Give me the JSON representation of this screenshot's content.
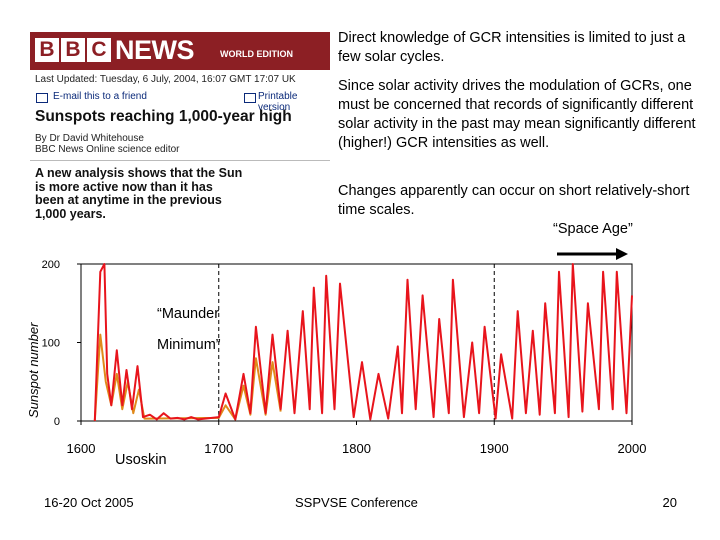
{
  "bbc": {
    "letters": [
      "B",
      "B",
      "C"
    ],
    "news": "NEWS",
    "edition": "WORLD EDITION",
    "last_updated": "Last Updated: Tuesday, 6 July, 2004, 16:07 GMT 17:07 UK",
    "email_link": "E-mail this to a friend",
    "printable_link": "Printable version",
    "headline": "Sunspots reaching 1,000-year high",
    "byline": "By Dr David Whitehouse",
    "byline_role": "BBC News Online science editor",
    "summary": "A new analysis shows that the Sun is more active now than it has been at anytime in the previous 1,000 years."
  },
  "slide": {
    "p1": "Direct knowledge of GCR intensities is limited to just a few solar cycles.",
    "p2": "Since solar activity drives the modulation of GCRs, one must be concerned that records of significantly different solar activity in the past may mean significantly different (higher!) GCR intensities as well.",
    "p3": "Changes apparently can occur on short relatively-short time scales.",
    "space_age": "“Space Age”",
    "footer_date": "16-20 Oct 2005",
    "footer_conf": "SSPVSE Conference",
    "page_number": "20"
  },
  "colors": {
    "bbc_red": "#8c1f24",
    "series_red": "#e8141c",
    "series_orange": "#e08a1a"
  },
  "chart_data": {
    "type": "line",
    "ylabel": "Sunspot number",
    "xlim": [
      1600,
      2000
    ],
    "ylim": [
      0,
      200
    ],
    "x_ticks": [
      "1600",
      "1700",
      "1800",
      "1900",
      "2000"
    ],
    "y_ticks": [
      "0",
      "100",
      "200"
    ],
    "reference_lines_x": [
      1700,
      1900
    ],
    "annotations": [
      "“Maunder",
      "Minimum”",
      "Usoskin"
    ],
    "series": [
      {
        "color": "#e8141c",
        "points": [
          [
            1610,
            0
          ],
          [
            1614,
            190
          ],
          [
            1617,
            200
          ],
          [
            1619,
            60
          ],
          [
            1622,
            20
          ],
          [
            1626,
            90
          ],
          [
            1630,
            20
          ],
          [
            1633,
            65
          ],
          [
            1637,
            15
          ],
          [
            1641,
            70
          ],
          [
            1645,
            5
          ],
          [
            1650,
            8
          ],
          [
            1655,
            2
          ],
          [
            1660,
            10
          ],
          [
            1665,
            3
          ],
          [
            1670,
            4
          ],
          [
            1675,
            2
          ],
          [
            1680,
            5
          ],
          [
            1685,
            2
          ],
          [
            1690,
            3
          ],
          [
            1695,
            4
          ],
          [
            1700,
            5
          ],
          [
            1705,
            35
          ],
          [
            1712,
            2
          ],
          [
            1718,
            60
          ],
          [
            1723,
            10
          ],
          [
            1727,
            120
          ],
          [
            1734,
            10
          ],
          [
            1739,
            110
          ],
          [
            1745,
            15
          ],
          [
            1750,
            115
          ],
          [
            1755,
            10
          ],
          [
            1761,
            140
          ],
          [
            1766,
            15
          ],
          [
            1769,
            170
          ],
          [
            1775,
            10
          ],
          [
            1778,
            185
          ],
          [
            1784,
            15
          ],
          [
            1788,
            175
          ],
          [
            1798,
            5
          ],
          [
            1804,
            75
          ],
          [
            1810,
            2
          ],
          [
            1816,
            60
          ],
          [
            1823,
            3
          ],
          [
            1830,
            95
          ],
          [
            1833,
            10
          ],
          [
            1837,
            180
          ],
          [
            1843,
            15
          ],
          [
            1848,
            160
          ],
          [
            1856,
            5
          ],
          [
            1860,
            130
          ],
          [
            1867,
            10
          ],
          [
            1870,
            180
          ],
          [
            1878,
            5
          ],
          [
            1884,
            100
          ],
          [
            1889,
            10
          ],
          [
            1893,
            120
          ],
          [
            1901,
            3
          ],
          [
            1905,
            85
          ],
          [
            1913,
            3
          ],
          [
            1917,
            140
          ],
          [
            1923,
            10
          ],
          [
            1928,
            115
          ],
          [
            1933,
            8
          ],
          [
            1937,
            150
          ],
          [
            1944,
            10
          ],
          [
            1947,
            190
          ],
          [
            1954,
            5
          ],
          [
            1957,
            200
          ],
          [
            1964,
            12
          ],
          [
            1968,
            150
          ],
          [
            1976,
            15
          ],
          [
            1979,
            190
          ],
          [
            1986,
            15
          ],
          [
            1989,
            190
          ],
          [
            1996,
            10
          ],
          [
            2000,
            160
          ]
        ]
      },
      {
        "color": "#e08a1a",
        "points": [
          [
            1610,
            0
          ],
          [
            1614,
            110
          ],
          [
            1618,
            50
          ],
          [
            1622,
            20
          ],
          [
            1626,
            60
          ],
          [
            1630,
            15
          ],
          [
            1634,
            50
          ],
          [
            1638,
            10
          ],
          [
            1642,
            40
          ],
          [
            1646,
            3
          ],
          [
            1700,
            4
          ],
          [
            1705,
            20
          ],
          [
            1712,
            2
          ],
          [
            1718,
            45
          ],
          [
            1723,
            8
          ],
          [
            1727,
            80
          ],
          [
            1734,
            8
          ],
          [
            1739,
            75
          ],
          [
            1745,
            12
          ]
        ]
      }
    ]
  }
}
